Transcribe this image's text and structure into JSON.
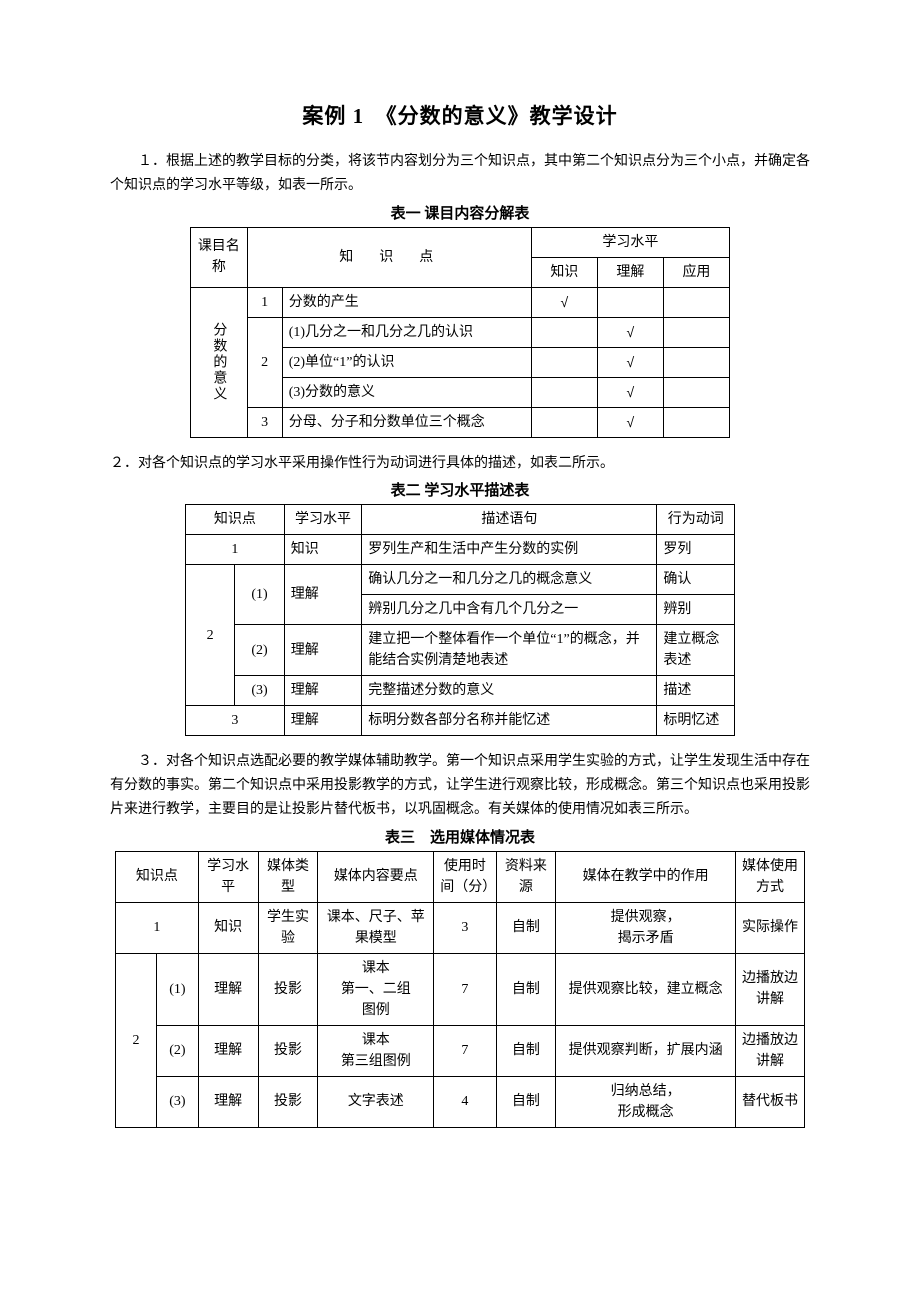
{
  "title": "案例 1　《分数的意义》教学设计",
  "para1": "１．根据上述的教学目标的分类，将该节内容划分为三个知识点，其中第二个知识点分为三个小点，并确定各个知识点的学习水平等级，如表一所示。",
  "table1": {
    "title": "表一  课目内容分解表",
    "header": {
      "kemu": "课目名称",
      "kp": "知　识　点",
      "level": "学习水平",
      "lv_knowledge": "知识",
      "lv_understand": "理解",
      "lv_apply": "应用"
    },
    "subject": "分数的意义",
    "rows": [
      {
        "idx": "1",
        "text": "分数的产生",
        "tick_k": "√",
        "tick_u": "",
        "tick_a": ""
      },
      {
        "idx": "2",
        "text": "(1)几分之一和几分之几的认识",
        "tick_k": "",
        "tick_u": "√",
        "tick_a": ""
      },
      {
        "idx": "",
        "text": "(2)单位“1”的认识",
        "tick_k": "",
        "tick_u": "√",
        "tick_a": ""
      },
      {
        "idx": "",
        "text": "(3)分数的意义",
        "tick_k": "",
        "tick_u": "√",
        "tick_a": ""
      },
      {
        "idx": "3",
        "text": "分母、分子和分数单位三个概念",
        "tick_k": "",
        "tick_u": "√",
        "tick_a": ""
      }
    ]
  },
  "para2": "２．对各个知识点的学习水平采用操作性行为动词进行具体的描述，如表二所示。",
  "table2": {
    "title": "表二  学习水平描述表",
    "header": {
      "kp": "知识点",
      "lvl": "学习水平",
      "desc": "描述语句",
      "verb": "行为动词"
    },
    "r1": {
      "kp": "1",
      "lvl": "知识",
      "desc": "罗列生产和生活中产生分数的实例",
      "verb": "罗列"
    },
    "r21a": {
      "kp_main": "2",
      "sub": "(1)",
      "lvl": "理解",
      "desc": "确认几分之一和几分之几的概念意义",
      "verb": "确认"
    },
    "r21b": {
      "desc": "辨别几分之几中含有几个几分之一",
      "verb": "辨别"
    },
    "r22": {
      "sub": "(2)",
      "lvl": "理解",
      "desc": "建立把一个整体看作一个单位“1”的概念，并能结合实例清楚地表述",
      "verb": "建立概念表述"
    },
    "r23": {
      "sub": "(3)",
      "lvl": "理解",
      "desc": "完整描述分数的意义",
      "verb": "描述"
    },
    "r3": {
      "kp": "3",
      "lvl": "理解",
      "desc": "标明分数各部分名称并能忆述",
      "verb": "标明忆述"
    }
  },
  "para3": "３．对各个知识点选配必要的教学媒体辅助教学。第一个知识点采用学生实验的方式，让学生发现生活中存在有分数的事实。第二个知识点中采用投影教学的方式，让学生进行观察比较，形成概念。第三个知识点也采用投影片来进行教学，主要目的是让投影片替代板书，以巩固概念。有关媒体的使用情况如表三所示。",
  "table3": {
    "title": "表三　选用媒体情况表",
    "header": {
      "kp": "知识点",
      "lvl": "学习水平",
      "mtype": "媒体类型",
      "content": "媒体内容要点",
      "time": "使用时间（分）",
      "src": "资料来源",
      "role": "媒体在教学中的作用",
      "mode": "媒体使用方式"
    },
    "r1": {
      "kp": "1",
      "lvl": "知识",
      "mtype": "学生实验",
      "content": "课本、尺子、苹果模型",
      "time": "3",
      "src": "自制",
      "role": "提供观察，\n揭示矛盾",
      "mode": "实际操作"
    },
    "r21": {
      "kp_main": "2",
      "sub": "(1)",
      "lvl": "理解",
      "mtype": "投影",
      "content": "课本\n第一、二组\n图例",
      "time": "7",
      "src": "自制",
      "role": "提供观察比较，建立概念",
      "mode": "边播放边讲解"
    },
    "r22": {
      "sub": "(2)",
      "lvl": "理解",
      "mtype": "投影",
      "content": "课本\n第三组图例",
      "time": "7",
      "src": "自制",
      "role": "提供观察判断，扩展内涵",
      "mode": "边播放边讲解"
    },
    "r23": {
      "sub": "(3)",
      "lvl": "理解",
      "mtype": "投影",
      "content": "文字表述",
      "time": "4",
      "src": "自制",
      "role": "归纳总结，\n形成概念",
      "mode": "替代板书"
    }
  }
}
